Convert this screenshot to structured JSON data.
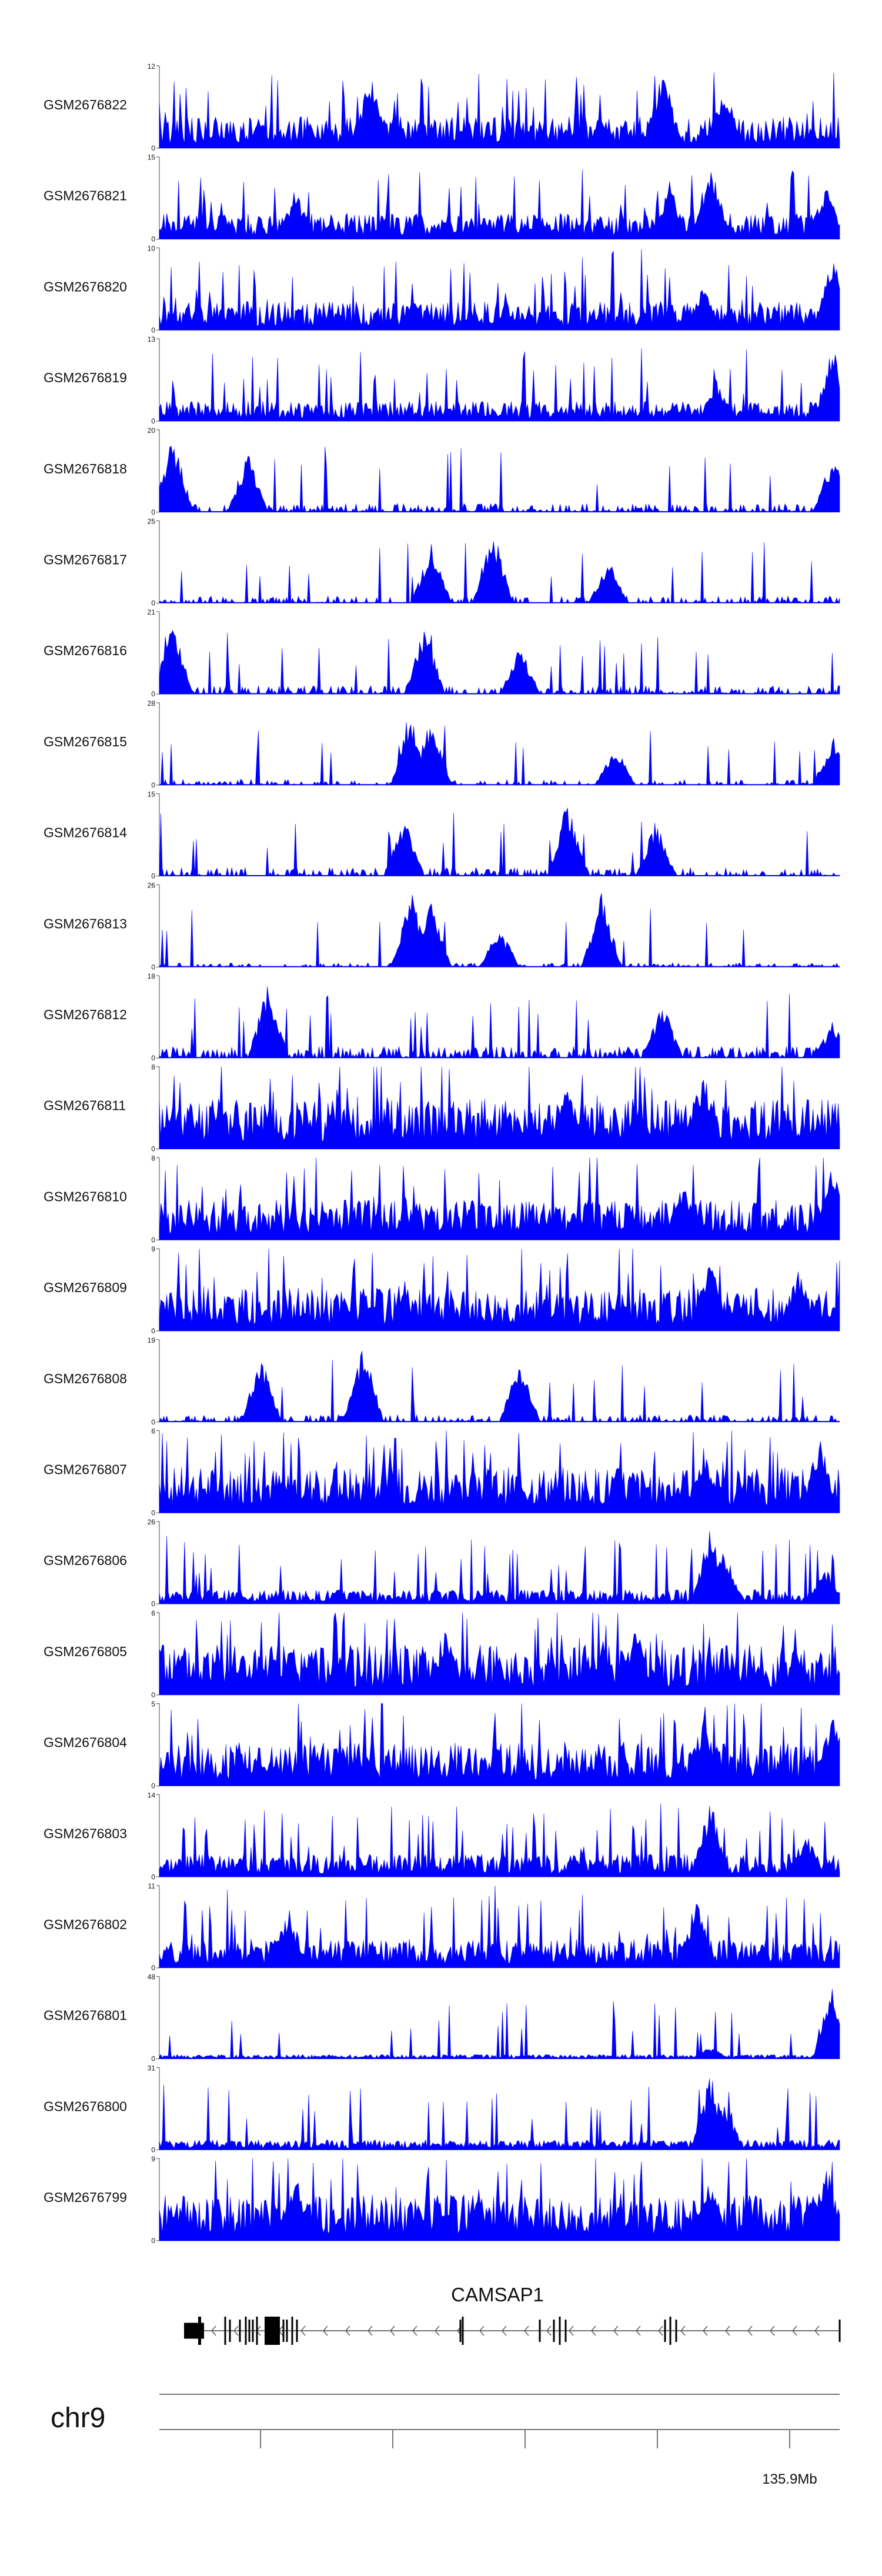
{
  "chart_data": {
    "type": "area",
    "color": "#0000ff",
    "gene": {
      "name": "CAMSAP1",
      "strand": "-"
    },
    "chromosome": "chr9",
    "x_tick_label": "135.9Mb",
    "tracks": [
      {
        "name": "GSM2676822",
        "ymin": 0,
        "ymax": 12,
        "seed": 22,
        "peaks": [
          [
            0.31,
            0.9
          ],
          [
            0.74,
            1.0
          ],
          [
            0.83,
            0.8
          ]
        ],
        "baseline": 0.22,
        "sparse": 0
      },
      {
        "name": "GSM2676821",
        "ymin": 0,
        "ymax": 15,
        "seed": 21,
        "peaks": [
          [
            0.2,
            0.6
          ],
          [
            0.75,
            0.7
          ],
          [
            0.81,
            0.95
          ],
          [
            0.98,
            0.7
          ]
        ],
        "baseline": 0.18,
        "sparse": 0
      },
      {
        "name": "GSM2676820",
        "ymin": 0,
        "ymax": 10,
        "seed": 20,
        "peaks": [
          [
            0.8,
            0.55
          ],
          [
            0.99,
            0.95
          ]
        ],
        "baseline": 0.2,
        "sparse": 0
      },
      {
        "name": "GSM2676819",
        "ymin": 0,
        "ymax": 13,
        "seed": 19,
        "peaks": [
          [
            0.82,
            0.5
          ],
          [
            0.99,
            0.95
          ]
        ],
        "baseline": 0.14,
        "sparse": 0
      },
      {
        "name": "GSM2676818",
        "ymin": 0,
        "ymax": 20,
        "seed": 18,
        "peaks": [
          [
            0.02,
            0.95
          ],
          [
            0.13,
            0.75
          ],
          [
            0.99,
            0.7
          ]
        ],
        "baseline": 0.06,
        "sparse": 0.55
      },
      {
        "name": "GSM2676817",
        "ymin": 0,
        "ymax": 25,
        "seed": 17,
        "peaks": [
          [
            0.4,
            0.75
          ],
          [
            0.49,
            0.95
          ],
          [
            0.66,
            0.55
          ]
        ],
        "baseline": 0.05,
        "sparse": 0.6
      },
      {
        "name": "GSM2676816",
        "ymin": 0,
        "ymax": 21,
        "seed": 16,
        "peaks": [
          [
            0.02,
            0.9
          ],
          [
            0.39,
            0.85
          ],
          [
            0.53,
            0.6
          ]
        ],
        "baseline": 0.06,
        "sparse": 0.55
      },
      {
        "name": "GSM2676815",
        "ymin": 0,
        "ymax": 28,
        "seed": 15,
        "peaks": [
          [
            0.37,
            0.95
          ],
          [
            0.4,
            0.9
          ],
          [
            0.67,
            0.5
          ],
          [
            0.99,
            0.6
          ]
        ],
        "baseline": 0.04,
        "sparse": 0.65
      },
      {
        "name": "GSM2676814",
        "ymin": 0,
        "ymax": 15,
        "seed": 14,
        "peaks": [
          [
            0.36,
            0.8
          ],
          [
            0.6,
            0.95
          ],
          [
            0.73,
            0.7
          ]
        ],
        "baseline": 0.06,
        "sparse": 0.55
      },
      {
        "name": "GSM2676813",
        "ymin": 0,
        "ymax": 26,
        "seed": 13,
        "peaks": [
          [
            0.37,
            0.95
          ],
          [
            0.4,
            0.85
          ],
          [
            0.65,
            0.9
          ],
          [
            0.5,
            0.5
          ]
        ],
        "baseline": 0.03,
        "sparse": 0.65
      },
      {
        "name": "GSM2676812",
        "ymin": 0,
        "ymax": 18,
        "seed": 12,
        "peaks": [
          [
            0.16,
            0.95
          ],
          [
            0.74,
            0.7
          ],
          [
            0.99,
            0.45
          ]
        ],
        "baseline": 0.08,
        "sparse": 0.45
      },
      {
        "name": "GSM2676811",
        "ymin": 0,
        "ymax": 8,
        "seed": 11,
        "peaks": [
          [
            0.6,
            0.8
          ],
          [
            0.8,
            0.95
          ]
        ],
        "baseline": 0.35,
        "sparse": 0
      },
      {
        "name": "GSM2676810",
        "ymin": 0,
        "ymax": 8,
        "seed": 10,
        "peaks": [
          [
            0.77,
            0.7
          ],
          [
            0.99,
            0.95
          ]
        ],
        "baseline": 0.28,
        "sparse": 0
      },
      {
        "name": "GSM2676809",
        "ymin": 0,
        "ymax": 9,
        "seed": 9,
        "peaks": [
          [
            0.81,
            0.95
          ],
          [
            0.94,
            0.8
          ]
        ],
        "baseline": 0.3,
        "sparse": 0
      },
      {
        "name": "GSM2676808",
        "ymin": 0,
        "ymax": 19,
        "seed": 8,
        "peaks": [
          [
            0.15,
            0.85
          ],
          [
            0.3,
            0.95
          ],
          [
            0.53,
            0.8
          ]
        ],
        "baseline": 0.05,
        "sparse": 0.6
      },
      {
        "name": "GSM2676807",
        "ymin": 0,
        "ymax": 6,
        "seed": 7,
        "peaks": [
          [
            0.8,
            0.8
          ],
          [
            0.97,
            0.95
          ]
        ],
        "baseline": 0.32,
        "sparse": 0
      },
      {
        "name": "GSM2676806",
        "ymin": 0,
        "ymax": 26,
        "seed": 6,
        "peaks": [
          [
            0.81,
            0.95
          ],
          [
            0.83,
            0.7
          ],
          [
            0.98,
            0.45
          ]
        ],
        "baseline": 0.1,
        "sparse": 0
      },
      {
        "name": "GSM2676805",
        "ymin": 0,
        "ymax": 6,
        "seed": 5,
        "peaks": [
          [
            0.42,
            0.8
          ],
          [
            0.7,
            0.85
          ]
        ],
        "baseline": 0.35,
        "sparse": 0
      },
      {
        "name": "GSM2676804",
        "ymin": 0,
        "ymax": 5,
        "seed": 4,
        "peaks": [
          [
            0.8,
            0.85
          ],
          [
            0.99,
            0.95
          ]
        ],
        "baseline": 0.3,
        "sparse": 0
      },
      {
        "name": "GSM2676803",
        "ymin": 0,
        "ymax": 14,
        "seed": 3,
        "peaks": [
          [
            0.81,
            0.95
          ],
          [
            0.95,
            0.55
          ]
        ],
        "baseline": 0.16,
        "sparse": 0
      },
      {
        "name": "GSM2676802",
        "ymin": 0,
        "ymax": 11,
        "seed": 2,
        "peaks": [
          [
            0.19,
            0.75
          ],
          [
            0.79,
            0.9
          ]
        ],
        "baseline": 0.2,
        "sparse": 0
      },
      {
        "name": "GSM2676801",
        "ymin": 0,
        "ymax": 48,
        "seed": 1,
        "peaks": [
          [
            0.99,
            0.95
          ],
          [
            0.81,
            0.15
          ]
        ],
        "baseline": 0.03,
        "sparse": 0
      },
      {
        "name": "GSM2676800",
        "ymin": 0,
        "ymax": 31,
        "seed": 30,
        "peaks": [
          [
            0.81,
            0.95
          ],
          [
            0.83,
            0.6
          ]
        ],
        "baseline": 0.07,
        "sparse": 0
      },
      {
        "name": "GSM2676799",
        "ymin": 0,
        "ymax": 9,
        "seed": 31,
        "peaks": [
          [
            0.2,
            0.85
          ],
          [
            0.81,
            0.8
          ],
          [
            0.98,
            0.95
          ]
        ],
        "baseline": 0.32,
        "sparse": 0
      }
    ]
  }
}
